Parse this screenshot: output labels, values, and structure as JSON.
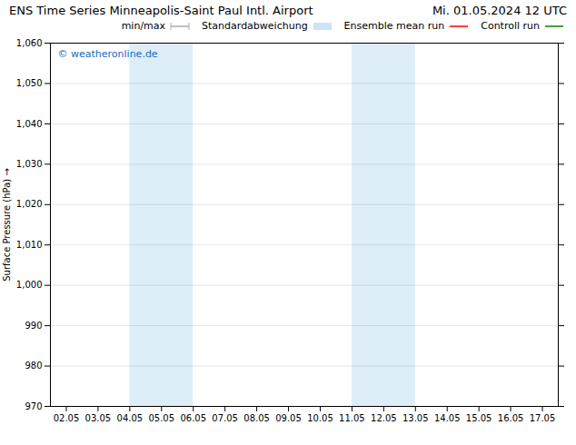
{
  "chart_data": {
    "type": "line",
    "title": "ENS Time Series Minneapolis-Saint Paul Intl. Airport",
    "subtitle": "Mi. 01.05.2024 12 UTC",
    "y_label": "Surface Pressure (hPa)",
    "categories": [
      "02.05",
      "03.05",
      "04.05",
      "05.05",
      "06.05",
      "07.05",
      "08.05",
      "09.05",
      "10.05",
      "11.05",
      "12.05",
      "13.05",
      "14.05",
      "15.05",
      "16.05",
      "17.05"
    ],
    "series": [
      {
        "name": "min/max",
        "type": "range",
        "color": "#aaaaaa",
        "values": [
          null,
          null,
          null,
          null,
          null,
          null,
          null,
          null,
          null,
          null,
          null,
          null,
          null,
          null,
          null,
          null
        ]
      },
      {
        "name": "Standardabweichung",
        "type": "area",
        "color": "#cce5f5",
        "values": [
          null,
          null,
          null,
          null,
          null,
          null,
          null,
          null,
          null,
          null,
          null,
          null,
          null,
          null,
          null,
          null
        ]
      },
      {
        "name": "Ensemble mean run",
        "type": "line",
        "color": "red",
        "values": [
          null,
          null,
          null,
          null,
          null,
          null,
          null,
          null,
          null,
          null,
          null,
          null,
          null,
          null,
          null,
          null
        ]
      },
      {
        "name": "Controll run",
        "type": "line",
        "color": "green",
        "values": [
          null,
          null,
          null,
          null,
          null,
          null,
          null,
          null,
          null,
          null,
          null,
          null,
          null,
          null,
          null,
          null
        ]
      }
    ],
    "shaded_regions": [
      {
        "from": "04.05",
        "to": "06.05",
        "color": "#ddeef8"
      },
      {
        "from": "11.05",
        "to": "13.05",
        "color": "#ddeef8"
      }
    ],
    "annotations": [
      {
        "text": "© weatheronline.de",
        "color": "#1a6bbf"
      }
    ],
    "ylim": [
      970,
      1060
    ],
    "yticks": [
      970,
      980,
      990,
      1000,
      1010,
      1020,
      1030,
      1040,
      1050,
      1060
    ],
    "grid": true,
    "legend": "top-right"
  }
}
